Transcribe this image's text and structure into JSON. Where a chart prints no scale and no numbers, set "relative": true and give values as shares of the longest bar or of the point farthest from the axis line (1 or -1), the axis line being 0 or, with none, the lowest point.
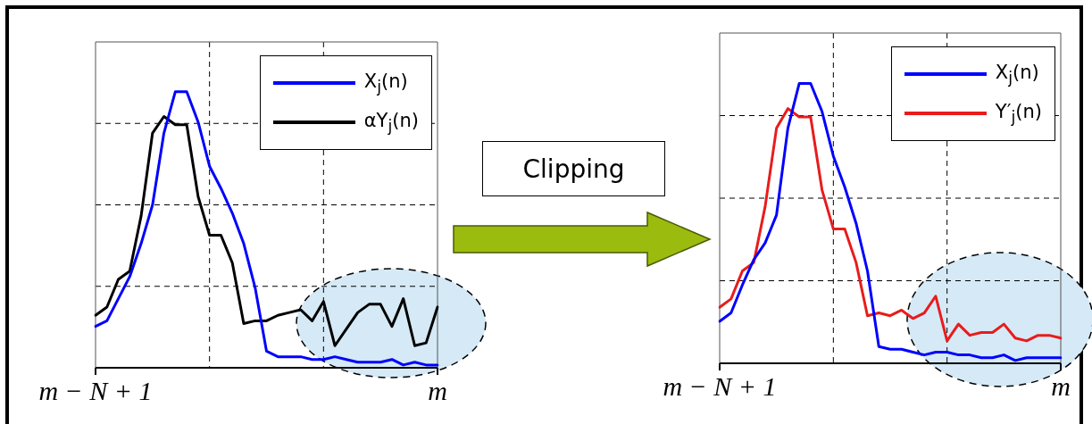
{
  "chart_data": [
    {
      "type": "line",
      "relative": true,
      "grid": true,
      "legend": "top right",
      "marker": "none",
      "categories": [
        "m − N + 1",
        null,
        null,
        null,
        null,
        null,
        null,
        null,
        null,
        null,
        null,
        null,
        null,
        null,
        null,
        null,
        null,
        null,
        null,
        null,
        null,
        null,
        null,
        null,
        null,
        null,
        null,
        null,
        null,
        null,
        "m"
      ],
      "series": [
        {
          "name": "X$_{j}$(n)",
          "color": "#0000ff",
          "values": [
            0.15,
            0.17,
            0.25,
            0.33,
            0.45,
            0.59,
            0.85,
            1,
            1,
            0.89,
            0.73,
            0.65,
            0.56,
            0.45,
            0.29,
            0.06,
            0.04,
            0.04,
            0.04,
            0.03,
            0.03,
            0.04,
            0.03,
            0.02,
            0.02,
            0.02,
            0.03,
            0.01,
            0.02,
            0.01,
            0.01
          ]
        },
        {
          "name": "αY$_{j}$(n)",
          "color": "#000000",
          "values": [
            0.19,
            0.22,
            0.32,
            0.35,
            0.55,
            0.85,
            0.91,
            0.88,
            0.88,
            0.62,
            0.48,
            0.48,
            0.38,
            0.16,
            0.17,
            0.17,
            0.19,
            0.2,
            0.21,
            0.17,
            0.24,
            0.08,
            0.14,
            0.2,
            0.23,
            0.23,
            0.15,
            0.25,
            0.08,
            0.09,
            0.22
          ]
        }
      ]
    },
    {
      "type": "other",
      "annotations": [
        "Clipping"
      ]
    },
    {
      "type": "line",
      "relative": true,
      "grid": true,
      "legend": "top right",
      "marker": "none",
      "categories": [
        "m − N + 1",
        null,
        null,
        null,
        null,
        null,
        null,
        null,
        null,
        null,
        null,
        null,
        null,
        null,
        null,
        null,
        null,
        null,
        null,
        null,
        null,
        null,
        null,
        null,
        null,
        null,
        null,
        null,
        null,
        null,
        "m"
      ],
      "series": [
        {
          "name": "X$_{j}$(n)",
          "color": "#0000ff",
          "values": [
            0.15,
            0.18,
            0.28,
            0.37,
            0.43,
            0.53,
            0.84,
            1,
            1,
            0.9,
            0.74,
            0.63,
            0.5,
            0.33,
            0.06,
            0.05,
            0.05,
            0.04,
            0.03,
            0.04,
            0.04,
            0.03,
            0.03,
            0.02,
            0.02,
            0.03,
            0.01,
            0.02,
            0.02,
            0.02,
            0.02
          ]
        },
        {
          "name": "Y′$_{j}$(n)",
          "color": "#e81c1c",
          "values": [
            0.2,
            0.23,
            0.33,
            0.36,
            0.56,
            0.84,
            0.91,
            0.88,
            0.88,
            0.62,
            0.48,
            0.48,
            0.36,
            0.17,
            0.18,
            0.17,
            0.19,
            0.16,
            0.18,
            0.24,
            0.08,
            0.14,
            0.1,
            0.11,
            0.11,
            0.14,
            0.09,
            0.08,
            0.1,
            0.1,
            0.09
          ]
        }
      ]
    }
  ]
}
